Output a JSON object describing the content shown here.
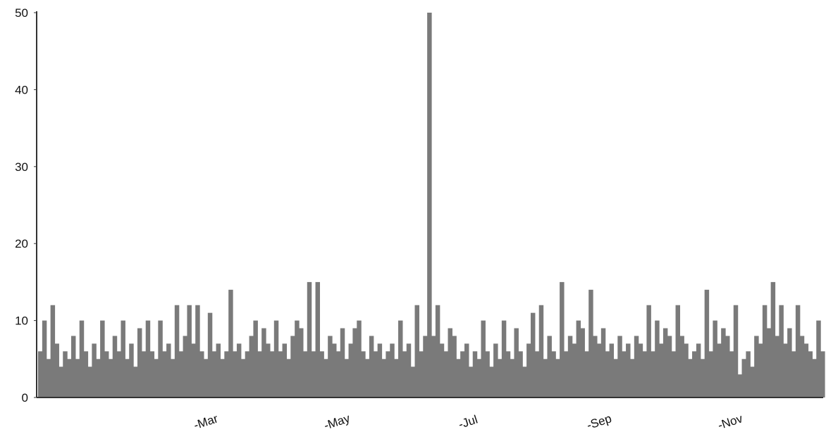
{
  "chart_data": {
    "type": "area",
    "title": "",
    "xlabel": "",
    "ylabel": "",
    "ylim": [
      0,
      50
    ],
    "y_ticks": [
      "0",
      "10",
      "20",
      "30",
      "40",
      "50"
    ],
    "x_tick_labels": [
      "-Mar",
      "-May",
      "-Jul",
      "-Sep",
      "-Nov"
    ],
    "x_tick_months": [
      "Mar",
      "May",
      "Jul",
      "Sep",
      "Nov"
    ],
    "x_range": [
      "Jan",
      "Dec"
    ],
    "legend": "none",
    "grid": false,
    "colors": {
      "fill": "#7a7a7a",
      "axis": "#333333",
      "text": "#111111"
    },
    "series": [
      {
        "values": [
          6,
          10,
          5,
          12,
          7,
          4,
          6,
          5,
          8,
          5,
          10,
          6,
          4,
          7,
          5,
          10,
          6,
          5,
          8,
          6,
          10,
          5,
          7,
          4,
          9,
          6,
          10,
          6,
          5,
          10,
          6,
          7,
          5,
          12,
          6,
          8,
          12,
          7,
          12,
          6,
          5,
          11,
          6,
          7,
          5,
          6,
          14,
          6,
          7,
          5,
          6,
          8,
          10,
          6,
          9,
          7,
          6,
          10,
          6,
          7,
          5,
          8,
          10,
          9,
          6,
          15,
          6,
          15,
          6,
          5,
          8,
          7,
          6,
          9,
          5,
          7,
          9,
          10,
          6,
          5,
          8,
          6,
          7,
          5,
          6,
          7,
          5,
          10,
          6,
          7,
          4,
          12,
          6,
          8,
          50,
          8,
          12,
          7,
          6,
          9,
          8,
          5,
          6,
          7,
          4,
          6,
          5,
          10,
          6,
          4,
          7,
          5,
          10,
          6,
          5,
          9,
          6,
          4,
          7,
          11,
          6,
          12,
          5,
          8,
          6,
          5,
          15,
          6,
          8,
          7,
          10,
          9,
          6,
          14,
          8,
          7,
          9,
          6,
          7,
          5,
          8,
          6,
          7,
          5,
          8,
          7,
          6,
          12,
          6,
          10,
          7,
          9,
          8,
          6,
          12,
          8,
          7,
          5,
          6,
          7,
          5,
          14,
          6,
          10,
          7,
          9,
          8,
          6,
          12,
          3,
          5,
          6,
          4,
          8,
          7,
          12,
          9,
          15,
          8,
          12,
          7,
          9,
          6,
          12,
          8,
          7,
          6,
          5,
          10,
          6
        ]
      }
    ]
  }
}
